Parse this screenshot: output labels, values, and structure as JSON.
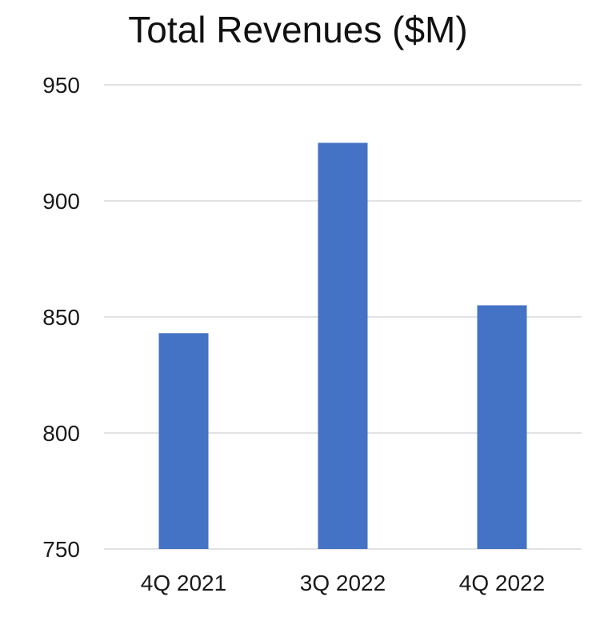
{
  "chart_data": {
    "type": "bar",
    "title": "Total Revenues ($M)",
    "xlabel": "",
    "ylabel": "",
    "categories": [
      "4Q 2021",
      "3Q 2022",
      "4Q 2022"
    ],
    "values": [
      843,
      925,
      855
    ],
    "ylim": [
      750,
      950
    ],
    "yticks": [
      750,
      800,
      850,
      900,
      950
    ],
    "grid": true,
    "legend": "none",
    "bar_color": "#4472c4"
  }
}
